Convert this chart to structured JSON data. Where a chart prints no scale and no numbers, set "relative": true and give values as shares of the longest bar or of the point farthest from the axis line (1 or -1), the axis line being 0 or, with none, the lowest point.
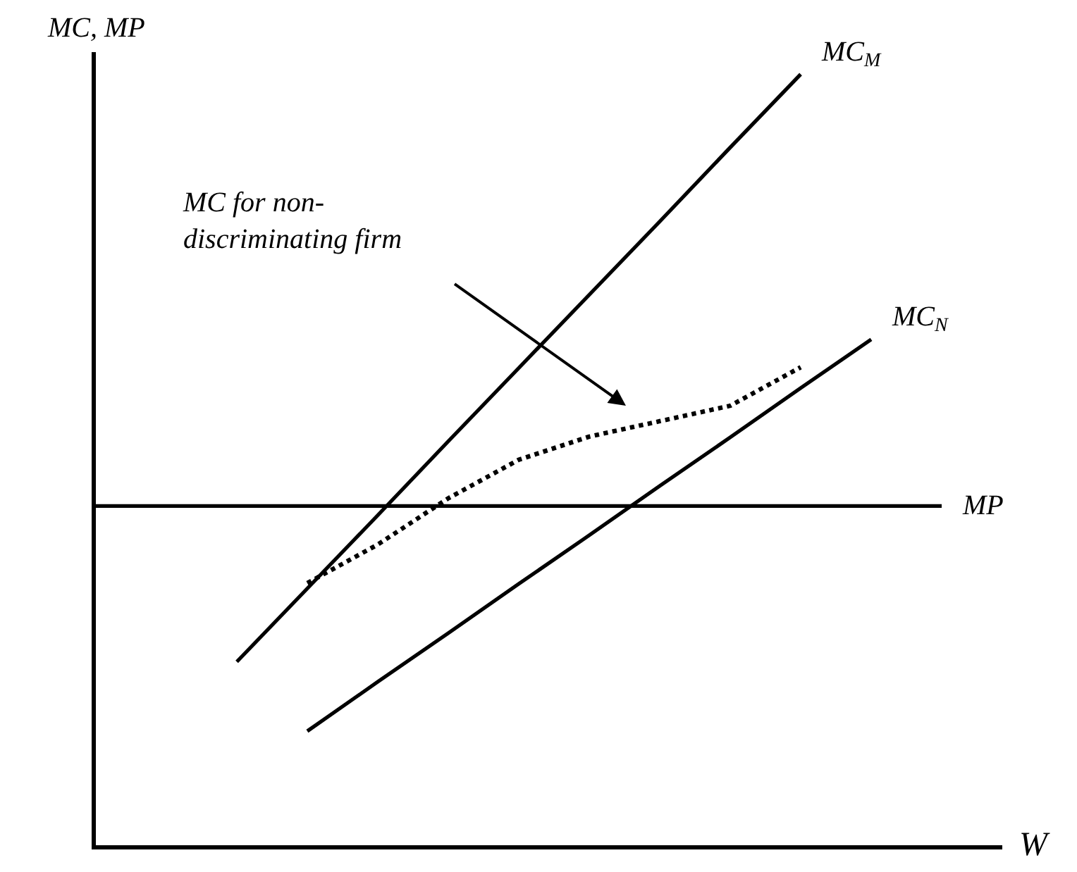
{
  "chart_data": {
    "type": "line",
    "relative": true,
    "xlabel": "W",
    "ylabel": "MC, MP",
    "categories": [
      null,
      null,
      null,
      null,
      null,
      null,
      null,
      null,
      null,
      null,
      null,
      null,
      null
    ],
    "series": [
      {
        "name": "MC$_{M}$",
        "color": "#000000",
        "values": [
          null,
          null,
          0.238,
          0.333,
          0.428,
          0.524,
          0.619,
          0.714,
          0.809,
          0.905,
          1.0,
          null,
          null
        ]
      },
      {
        "name": "MC$_{N}$",
        "color": "#000000",
        "values": [
          null,
          null,
          null,
          0.148,
          0.212,
          0.275,
          0.339,
          0.402,
          0.466,
          0.529,
          0.593,
          0.656,
          null
        ]
      },
      {
        "name": "MP",
        "color": "#000000",
        "values": [
          0.44,
          0.44,
          0.44,
          0.44,
          0.44,
          0.44,
          0.44,
          0.44,
          0.44,
          0.44,
          0.44,
          0.44,
          0.44
        ]
      },
      {
        "color": "#000000",
        "line_style": "dotted",
        "values": [
          null,
          null,
          null,
          0.34,
          0.39,
          0.45,
          0.5,
          0.53,
          0.55,
          0.57,
          0.62,
          null,
          null
        ]
      }
    ],
    "annotations": [
      "MC for non-\ndiscriminating firm"
    ],
    "legend": false,
    "marker": "none",
    "line_style": "solid"
  }
}
